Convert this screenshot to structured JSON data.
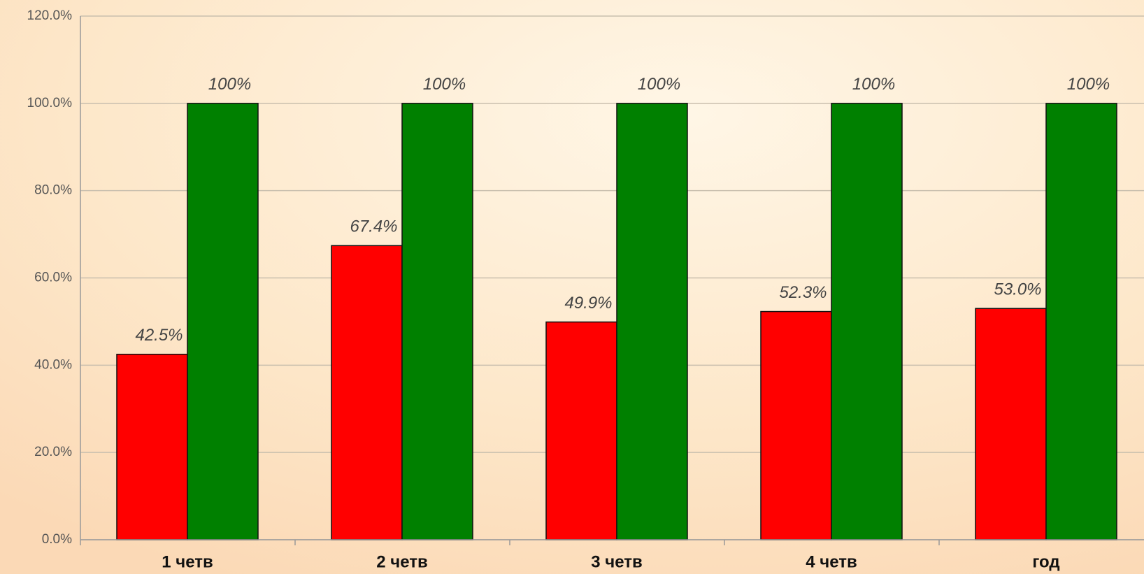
{
  "chart_data": {
    "type": "bar",
    "categories": [
      "1 четв",
      "2 четв",
      "3 четв",
      "4 четв",
      "год"
    ],
    "series": [
      {
        "color": "#ff0000",
        "values": [
          42.5,
          67.4,
          49.9,
          52.3,
          53.0
        ],
        "value_labels": [
          "42.5%",
          "67.4%",
          "49.9%",
          "52.3%",
          "53.0%"
        ]
      },
      {
        "color": "#008000",
        "values": [
          100,
          100,
          100,
          100,
          100
        ],
        "value_labels": [
          "100%",
          "100%",
          "100%",
          "100%",
          "100%"
        ]
      }
    ],
    "ylim": [
      0,
      120
    ],
    "yticks": [
      {
        "value": 0,
        "label": "0.0%"
      },
      {
        "value": 20,
        "label": "20.0%"
      },
      {
        "value": 40,
        "label": "40.0%"
      },
      {
        "value": 60,
        "label": "60.0%"
      },
      {
        "value": 80,
        "label": "80.0%"
      },
      {
        "value": 100,
        "label": "100.0%"
      },
      {
        "value": 120,
        "label": "120.0%"
      }
    ],
    "grid": true
  }
}
